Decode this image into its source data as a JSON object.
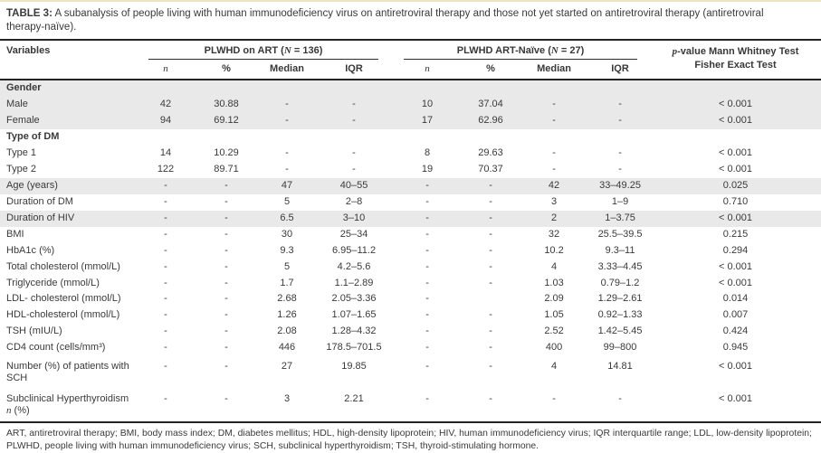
{
  "title": {
    "label": "TABLE 3:",
    "line1": " A subanalysis of people living with human immunodeficiency virus on antiretroviral therapy and those not yet started on antiretroviral therapy (antiretroviral",
    "line2": "therapy-naïve)."
  },
  "header": {
    "variables": "Variables",
    "groups": [
      {
        "prefix": "PLWHD on ART (",
        "nvar": "N",
        "suffix": " = 136)"
      },
      {
        "prefix": "PLWHD ART-Naïve (",
        "nvar": "N",
        "suffix": " = 27)"
      }
    ],
    "subcols": [
      "n",
      "%",
      "Median",
      "IQR",
      "n",
      "%",
      "Median",
      "IQR"
    ],
    "pvalue": {
      "pvar": "p",
      "line1rest": "-value Mann Whitney Test",
      "line2": "Fisher Exact Test"
    }
  },
  "table": {
    "rows": [
      {
        "label": "Gender",
        "bold": true,
        "shaded": true,
        "cells": [
          "",
          "",
          "",
          "",
          "",
          "",
          "",
          "",
          ""
        ]
      },
      {
        "label": "Male",
        "bold": false,
        "shaded": true,
        "cells": [
          "42",
          "30.88",
          "-",
          "-",
          "10",
          "37.04",
          "-",
          "-",
          "< 0.001"
        ]
      },
      {
        "label": "Female",
        "bold": false,
        "shaded": true,
        "cells": [
          "94",
          "69.12",
          "-",
          "-",
          "17",
          "62.96",
          "-",
          "-",
          "< 0.001"
        ]
      },
      {
        "label": "Type of DM",
        "bold": true,
        "shaded": false,
        "cells": [
          "",
          "",
          "",
          "",
          "",
          "",
          "",
          "",
          ""
        ]
      },
      {
        "label": "Type 1",
        "bold": false,
        "shaded": false,
        "cells": [
          "14",
          "10.29",
          "-",
          "-",
          "8",
          "29.63",
          "-",
          "-",
          "< 0.001"
        ]
      },
      {
        "label": "Type 2",
        "bold": false,
        "shaded": false,
        "cells": [
          "122",
          "89.71",
          "-",
          "-",
          "19",
          "70.37",
          "-",
          "-",
          "< 0.001"
        ]
      },
      {
        "label": "Age (years)",
        "bold": false,
        "shaded": true,
        "cells": [
          "-",
          "-",
          "47",
          "40–55",
          "-",
          "-",
          "42",
          "33–49.25",
          "0.025"
        ]
      },
      {
        "label": "Duration of DM",
        "bold": false,
        "shaded": false,
        "cells": [
          "-",
          "-",
          "5",
          "2–8",
          "-",
          "-",
          "3",
          "1–9",
          "0.710"
        ]
      },
      {
        "label": "Duration of HIV",
        "bold": false,
        "shaded": true,
        "cells": [
          "-",
          "-",
          "6.5",
          "3–10",
          "-",
          "-",
          "2",
          "1–3.75",
          "< 0.001"
        ]
      },
      {
        "label": "BMI",
        "bold": false,
        "shaded": false,
        "cells": [
          "-",
          "-",
          "30",
          "25–34",
          "-",
          "-",
          "32",
          "25.5–39.5",
          "0.215"
        ]
      },
      {
        "label": "HbA1c (%)",
        "bold": false,
        "shaded": false,
        "cells": [
          "-",
          "-",
          "9.3",
          "6.95–11.2",
          "-",
          "-",
          "10.2",
          "9.3–11",
          "0.294"
        ]
      },
      {
        "label": "Total cholesterol (mmol/L)",
        "bold": false,
        "shaded": false,
        "cells": [
          "-",
          "-",
          "5",
          "4.2–5.6",
          "-",
          "-",
          "4",
          "3.33–4.45",
          "< 0.001"
        ]
      },
      {
        "label": "Triglyceride (mmol/L)",
        "bold": false,
        "shaded": false,
        "cells": [
          "-",
          "-",
          "1.7",
          "1.1–2.89",
          "-",
          "-",
          "1.03",
          "0.79–1.2",
          "< 0.001"
        ]
      },
      {
        "label": "LDL- cholesterol (mmol/L)",
        "bold": false,
        "shaded": false,
        "cells": [
          "-",
          "-",
          "2.68",
          "2.05–3.36",
          "-",
          "",
          "2.09",
          "1.29–2.61",
          "0.014"
        ]
      },
      {
        "label": "HDL-cholesterol (mmol/L)",
        "bold": false,
        "shaded": false,
        "cells": [
          "-",
          "-",
          "1.26",
          "1.07–1.65",
          "-",
          "-",
          "1.05",
          "0.92–1.33",
          "0.007"
        ]
      },
      {
        "label": "TSH (mIU/L)",
        "bold": false,
        "shaded": false,
        "cells": [
          "-",
          "-",
          "2.08",
          "1.28–4.32",
          "-",
          "-",
          "2.52",
          "1.42–5.45",
          "0.424"
        ]
      },
      {
        "label": "CD4 count (cells/mm³)",
        "bold": false,
        "shaded": false,
        "cells": [
          "-",
          "-",
          "446",
          "178.5–701.5",
          "-",
          "-",
          "400",
          "99–800",
          "0.945"
        ]
      },
      {
        "label": "Number (%) of patients with SCH",
        "bold": false,
        "shaded": false,
        "tall": true,
        "cells": [
          "-",
          "-",
          "27",
          "19.85",
          "-",
          "-",
          "4",
          "14.81",
          "< 0.001"
        ]
      },
      {
        "label_parts": [
          "Subclinical Hyperthyroidism ",
          {
            "italic": "n"
          },
          " (%)"
        ],
        "bold": false,
        "shaded": false,
        "tall": true,
        "cells": [
          "-",
          "-",
          "3",
          "2.21",
          "-",
          "-",
          "-",
          "-",
          "< 0.001"
        ]
      }
    ]
  },
  "footnote": {
    "line1": "ART, antiretroviral therapy; BMI, body mass index; DM, diabetes mellitus; HDL, high-density lipoprotein; HIV, human immunodeficiency virus; IQR interquartile range; LDL, low-density lipoprotein;",
    "line2": "PLWHD, people living with human immunodeficiency virus; SCH, subclinical hyperthyroidism; TSH, thyroid-stimulating hormone."
  },
  "colors": {
    "shaded_row": "#e9e9e9",
    "rule": "#232323",
    "text": "#3a3a3a",
    "top_accent": "#ede2cb"
  }
}
